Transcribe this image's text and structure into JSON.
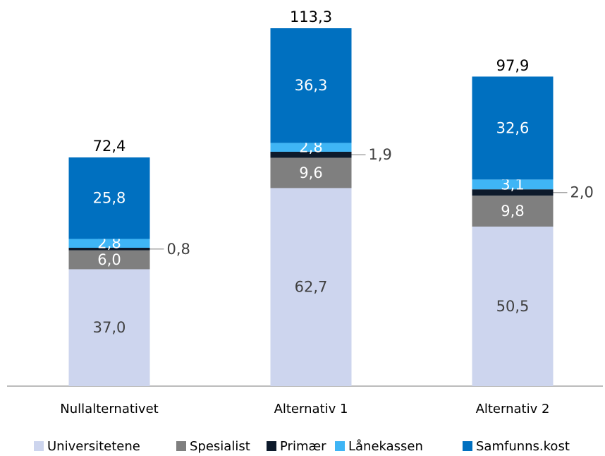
{
  "chart_data": {
    "type": "bar",
    "stacked": true,
    "categories": [
      "Nullalternativet",
      "Alternativ 1",
      "Alternativ 2"
    ],
    "series": [
      {
        "name": "Universitetene",
        "color": "#cdd5ee",
        "values": [
          37.0,
          62.7,
          50.5
        ],
        "value_labels": [
          "37,0",
          "62,7",
          "50,5"
        ]
      },
      {
        "name": "Spesialist",
        "color": "#7f7f7f",
        "values": [
          6.0,
          9.6,
          9.8
        ],
        "value_labels": [
          "6,0",
          "9,6",
          "9,8"
        ]
      },
      {
        "name": "Primær",
        "color": "#0d1a2b",
        "values": [
          0.8,
          1.9,
          2.0
        ],
        "value_labels": [
          "0,8",
          "1,9",
          "2,0"
        ]
      },
      {
        "name": "Lånekassen",
        "color": "#3fb5f5",
        "values": [
          2.8,
          2.8,
          3.1
        ],
        "value_labels": [
          "2,8",
          "2,8",
          "3,1"
        ]
      },
      {
        "name": "Samfunns.kost",
        "color": "#0070c0",
        "values": [
          25.8,
          36.3,
          32.6
        ],
        "value_labels": [
          "25,8",
          "36,3",
          "32,6"
        ]
      }
    ],
    "totals": [
      72.4,
      113.3,
      97.9
    ],
    "total_labels": [
      "72,4",
      "113,3",
      "97,9"
    ],
    "legend": "bottom"
  }
}
